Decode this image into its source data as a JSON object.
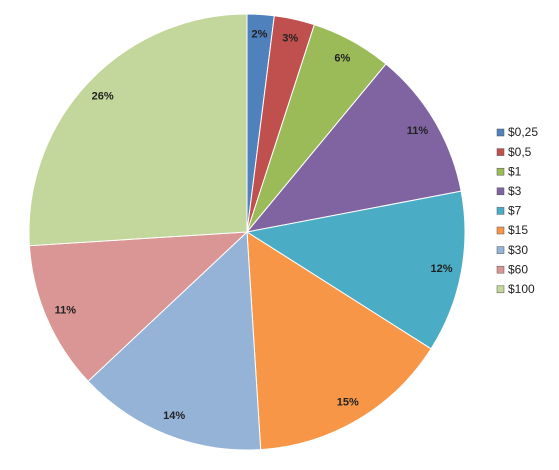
{
  "chart_data": {
    "type": "pie",
    "categories": [
      "$0,25",
      "$0,5",
      "$1",
      "$3",
      "$7",
      "$15",
      "$30",
      "$60",
      "$100"
    ],
    "values": [
      2,
      3,
      6,
      11,
      12,
      15,
      14,
      11,
      26
    ],
    "value_labels": [
      "2%",
      "3%",
      "6%",
      "11%",
      "12%",
      "15%",
      "14%",
      "11%",
      "26%"
    ],
    "colors": [
      "#4F81BD",
      "#C0504D",
      "#9BBB59",
      "#8064A2",
      "#4BACC6",
      "#F79646",
      "#95B3D7",
      "#D99694",
      "#C3D69B"
    ],
    "legend": "right"
  }
}
